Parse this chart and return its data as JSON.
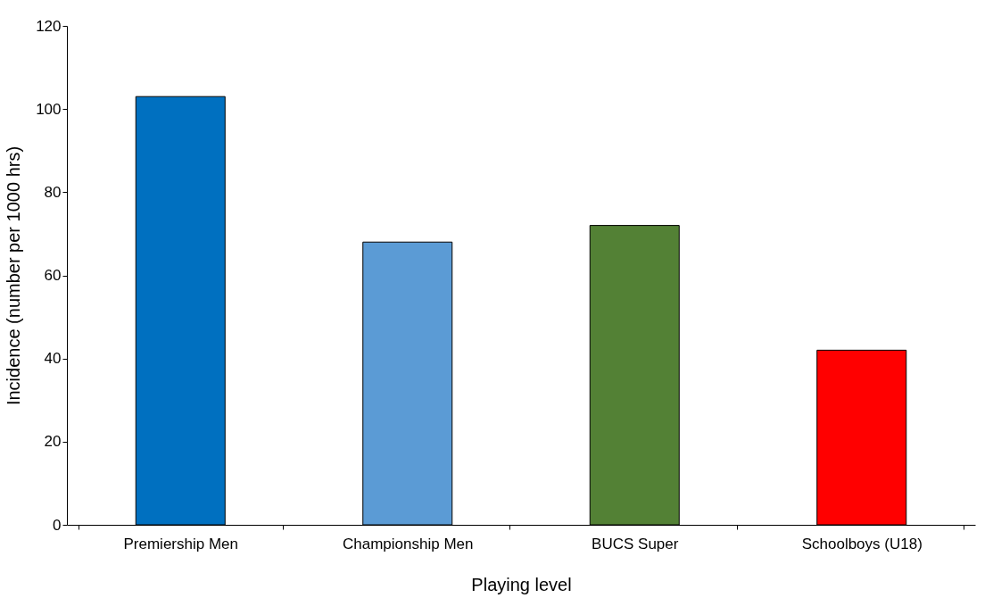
{
  "chart_data": {
    "type": "bar",
    "xlabel": "Playing level",
    "ylabel": "Incidence (number per 1000 hrs)",
    "categories": [
      "Premiership Men",
      "Championship Men",
      "BUCS Super",
      "Schoolboys (U18)"
    ],
    "values": [
      103,
      68,
      72,
      42
    ],
    "colors": [
      "#0070c0",
      "#5b9bd5",
      "#538135",
      "#ff0000"
    ],
    "ylim": [
      0,
      120
    ],
    "yticks": [
      0,
      20,
      40,
      60,
      80,
      100,
      120
    ],
    "grid": false
  }
}
